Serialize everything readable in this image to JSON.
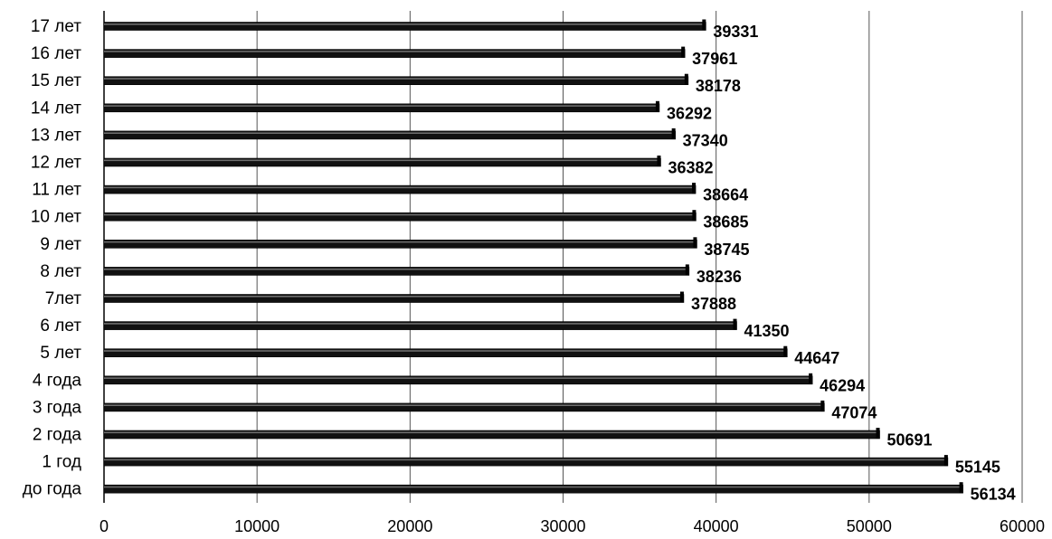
{
  "chart_data": {
    "type": "bar",
    "orientation": "horizontal",
    "title": "",
    "xlabel": "",
    "ylabel": "",
    "categories": [
      "17 лет",
      "16 лет",
      "15 лет",
      "14 лет",
      "13 лет",
      "12 лет",
      "11 лет",
      "10 лет",
      "9 лет",
      "8 лет",
      "7лет",
      "6 лет",
      "5 лет",
      "4 года",
      "3 года",
      "2 года",
      "1 год",
      "до года"
    ],
    "values": [
      39331,
      37961,
      38178,
      36292,
      37340,
      36382,
      38664,
      38685,
      38745,
      38236,
      37888,
      41350,
      44647,
      46294,
      47074,
      50691,
      55145,
      56134
    ],
    "xlim": [
      0,
      60000
    ],
    "xticks": [
      0,
      10000,
      20000,
      30000,
      40000,
      50000,
      60000
    ],
    "xtick_labels": [
      "0",
      "10000",
      "20000",
      "30000",
      "40000",
      "50000",
      "60000"
    ],
    "grid": "vertical",
    "legend": "none",
    "bar_color": "#111111",
    "data_labels": [
      "39331",
      "37961",
      "38178",
      "36292",
      "37340",
      "36382",
      "38664",
      "38685",
      "38745",
      "38236",
      "37888",
      "41350",
      "44647",
      "46294",
      "47074",
      "50691",
      "55145",
      "56134"
    ]
  }
}
